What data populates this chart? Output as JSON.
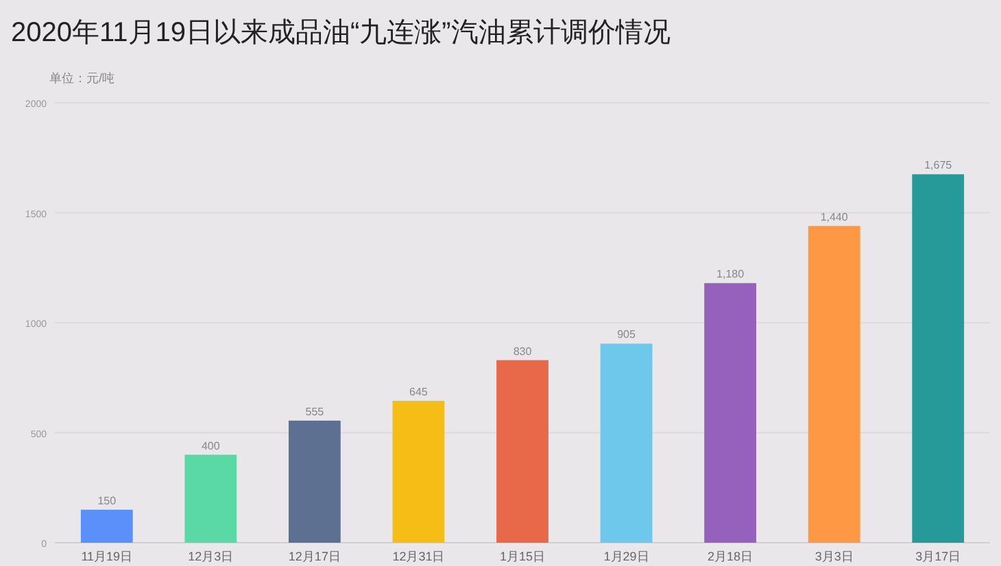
{
  "chart_data": {
    "type": "bar",
    "title": "2020年11月19日以来成品油“九连涨”汽油累计调价情况",
    "subtitle": "单位：元/吨",
    "categories": [
      "11月19日",
      "12月3日",
      "12月17日",
      "12月31日",
      "1月15日",
      "1月29日",
      "2月18日",
      "3月3日",
      "3月17日"
    ],
    "values": [
      150,
      400,
      555,
      645,
      830,
      905,
      1180,
      1440,
      1675
    ],
    "value_labels": [
      "150",
      "400",
      "555",
      "645",
      "830",
      "905",
      "1,180",
      "1,440",
      "1,675"
    ],
    "colors": [
      "#5b8ff9",
      "#5ad8a6",
      "#5d7092",
      "#f6bd16",
      "#e8684a",
      "#6dc8ec",
      "#9661bc",
      "#ff9845",
      "#269a99"
    ],
    "ylim": [
      0,
      2000
    ],
    "yticks": [
      0,
      500,
      1000,
      1500,
      2000
    ],
    "grid": "y"
  }
}
